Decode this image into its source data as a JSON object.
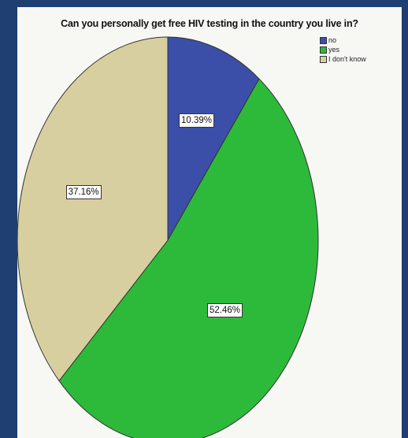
{
  "chart_data": {
    "type": "pie",
    "title": "Can you personally get free HIV testing in the country you live in?",
    "slices": [
      {
        "label": "no",
        "value": 10.39,
        "display": "10.39%",
        "color": "#3b4fa8"
      },
      {
        "label": "yes",
        "value": 52.46,
        "display": "52.46%",
        "color": "#2dba3a"
      },
      {
        "label": "I don't know",
        "value": 37.16,
        "display": "37.16%",
        "color": "#d8cfa0"
      }
    ],
    "legend_position": "top-right",
    "start_angle": "12 o'clock, clockwise"
  }
}
